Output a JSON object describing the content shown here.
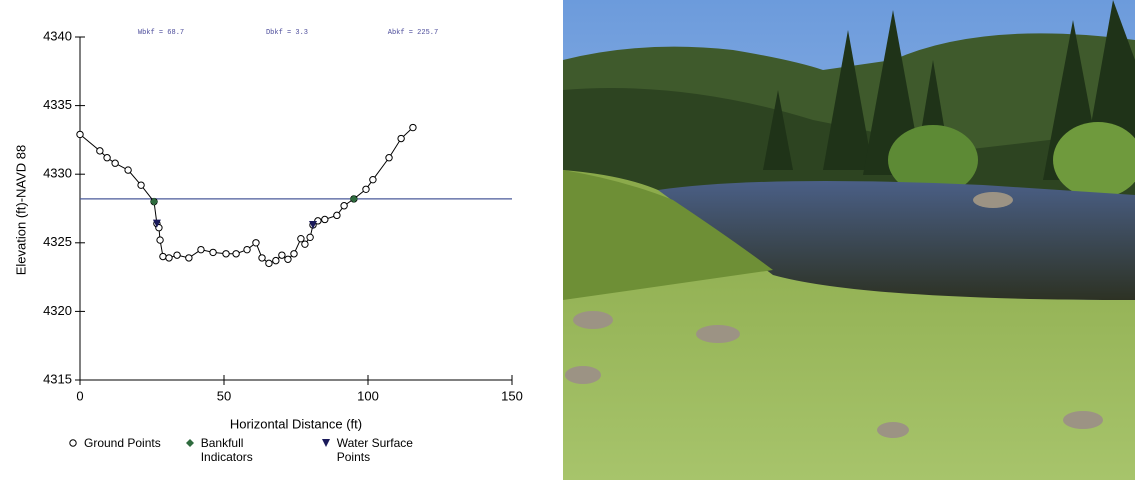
{
  "chart_data": {
    "type": "scatter",
    "xlabel": "Horizontal Distance (ft)",
    "ylabel": "Elevation (ft)-NAVD 88",
    "annotations": [
      "Wbkf = 68.7",
      "Dbkf = 3.3",
      "Abkf = 225.7"
    ],
    "xlim": [
      0,
      150
    ],
    "xticks": [
      0,
      50,
      100,
      150
    ],
    "ylim": [
      4315,
      4340
    ],
    "yticks": [
      4315,
      4320,
      4325,
      4330,
      4335,
      4340
    ],
    "bankfull_elevation": 4328.2,
    "bankfull_color": "#4a5a9a",
    "series": [
      {
        "name": "Ground Points",
        "color": "#000000",
        "x": [
          0,
          6.9,
          9.4,
          12.2,
          16.7,
          21.2,
          25.7,
          26.7,
          27.4,
          27.8,
          28.8,
          30.9,
          33.7,
          37.8,
          42,
          46.2,
          50.7,
          54.2,
          58,
          61.1,
          63.2,
          65.6,
          68,
          70.1,
          72.2,
          74.3,
          76.7,
          78.1,
          79.9,
          80.9,
          82.6,
          85,
          89.2,
          91.7,
          95.1,
          99.3,
          101.7,
          107.3,
          111.5,
          115.6
        ],
        "values": [
          4332.9,
          4331.7,
          4331.2,
          4330.8,
          4330.3,
          4329.2,
          4328.0,
          4326.4,
          4326.1,
          4325.2,
          4324.0,
          4323.9,
          4324.1,
          4323.9,
          4324.5,
          4324.3,
          4324.2,
          4324.2,
          4324.5,
          4325.0,
          4323.9,
          4323.5,
          4323.7,
          4324.1,
          4323.8,
          4324.2,
          4325.3,
          4324.9,
          4325.4,
          4326.3,
          4326.6,
          4326.7,
          4327.0,
          4327.7,
          4328.2,
          4328.9,
          4329.6,
          4331.2,
          4332.6,
          4333.4
        ]
      },
      {
        "name": "Bankfull Indicators",
        "color": "#2e6b3e",
        "x": [
          25.7,
          95.1
        ],
        "values": [
          4328.0,
          4328.2
        ]
      },
      {
        "name": "Water Surface Points",
        "color": "#1a1a5a",
        "x": [
          26.7,
          80.9
        ],
        "values": [
          4326.4,
          4326.3
        ]
      }
    ]
  }
}
